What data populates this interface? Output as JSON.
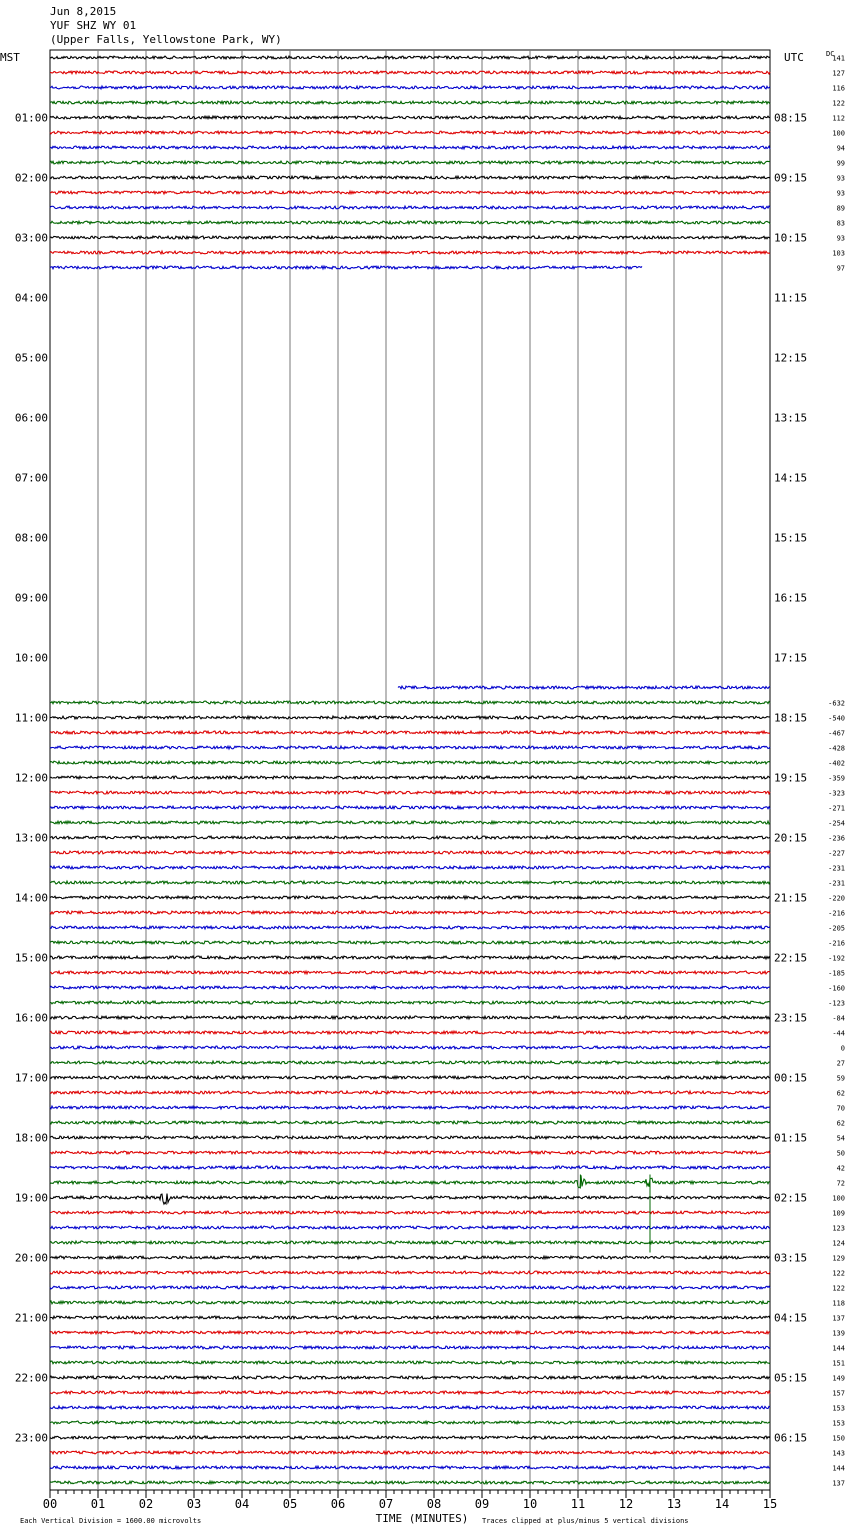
{
  "header": {
    "date": "Jun 8,2015",
    "station": "YUF SHZ WY 01",
    "location": "(Upper Falls, Yellowstone Park, WY)"
  },
  "chart_data": {
    "type": "line",
    "title": "Jun 8,2015 YUF SHZ WY 01 (Upper Falls, Yellowstone Park, WY)",
    "left_axis_label": "MST",
    "right_axis_label": "UTC",
    "dc_label": "DC",
    "xlabel": "TIME (MINUTES)",
    "xlim": [
      0,
      15
    ],
    "x_ticks": [
      "00",
      "01",
      "02",
      "03",
      "04",
      "05",
      "06",
      "07",
      "08",
      "09",
      "10",
      "11",
      "12",
      "13",
      "14",
      "15"
    ],
    "grid": true,
    "footer_left": "Each Vertical Division = 1600.00 microvolts",
    "footer_right": "Traces clipped at plus/minus 5 vertical divisions",
    "trace_colors": [
      "#000000",
      "#dd0000",
      "#0000cc",
      "#006600"
    ],
    "rows_per_hour": 4,
    "hour_labels": [
      {
        "mst": "01:00",
        "utc": "08:15"
      },
      {
        "mst": "02:00",
        "utc": "09:15"
      },
      {
        "mst": "03:00",
        "utc": "10:15"
      },
      {
        "mst": "04:00",
        "utc": "11:15"
      },
      {
        "mst": "05:00",
        "utc": "12:15"
      },
      {
        "mst": "06:00",
        "utc": "13:15"
      },
      {
        "mst": "07:00",
        "utc": "14:15"
      },
      {
        "mst": "08:00",
        "utc": "15:15"
      },
      {
        "mst": "09:00",
        "utc": "16:15"
      },
      {
        "mst": "10:00",
        "utc": "17:15"
      },
      {
        "mst": "11:00",
        "utc": "18:15"
      },
      {
        "mst": "12:00",
        "utc": "19:15"
      },
      {
        "mst": "13:00",
        "utc": "20:15"
      },
      {
        "mst": "14:00",
        "utc": "21:15"
      },
      {
        "mst": "15:00",
        "utc": "22:15"
      },
      {
        "mst": "16:00",
        "utc": "23:15"
      },
      {
        "mst": "17:00",
        "utc": "00:15"
      },
      {
        "mst": "18:00",
        "utc": "01:15"
      },
      {
        "mst": "19:00",
        "utc": "02:15"
      },
      {
        "mst": "20:00",
        "utc": "03:15"
      },
      {
        "mst": "21:00",
        "utc": "04:15"
      },
      {
        "mst": "22:00",
        "utc": "05:15"
      },
      {
        "mst": "23:00",
        "utc": "06:15"
      }
    ],
    "dc_offsets_top": [
      "141",
      "127",
      "116",
      "122",
      "112",
      "100",
      "94",
      "99",
      "93",
      "93",
      "89",
      "83",
      "93",
      "103",
      "97"
    ],
    "dc_offsets_bottom": [
      "-632",
      "-540",
      "-467",
      "-428",
      "-402",
      "-359",
      "-323",
      "-271",
      "-254",
      "-236",
      "-227",
      "-231",
      "-231",
      "-220",
      "-216",
      "-205",
      "-216",
      "-192",
      "-185",
      "-160",
      "-123",
      "-84",
      "-44",
      "0",
      "27",
      "59",
      "62",
      "70",
      "62",
      "54",
      "50",
      "42",
      "72",
      "100",
      "109",
      "123",
      "124",
      "129",
      "122",
      "122",
      "118",
      "137",
      "139",
      "144",
      "151",
      "149",
      "157",
      "153",
      "153",
      "150",
      "143",
      "144",
      "137"
    ],
    "partial_traces": [
      {
        "row": 14,
        "start_min": 0,
        "end_min": 12.35
      },
      {
        "row": 42,
        "start_min": 7.25,
        "end_min": 15
      }
    ],
    "full_rows_top_end": 13,
    "full_rows_bottom_start": 43,
    "total_rows": 96,
    "events": [
      {
        "row": 76,
        "min": 2.4
      },
      {
        "row": 75,
        "min": 11.05
      },
      {
        "row": 75,
        "min": 12.5
      }
    ]
  }
}
